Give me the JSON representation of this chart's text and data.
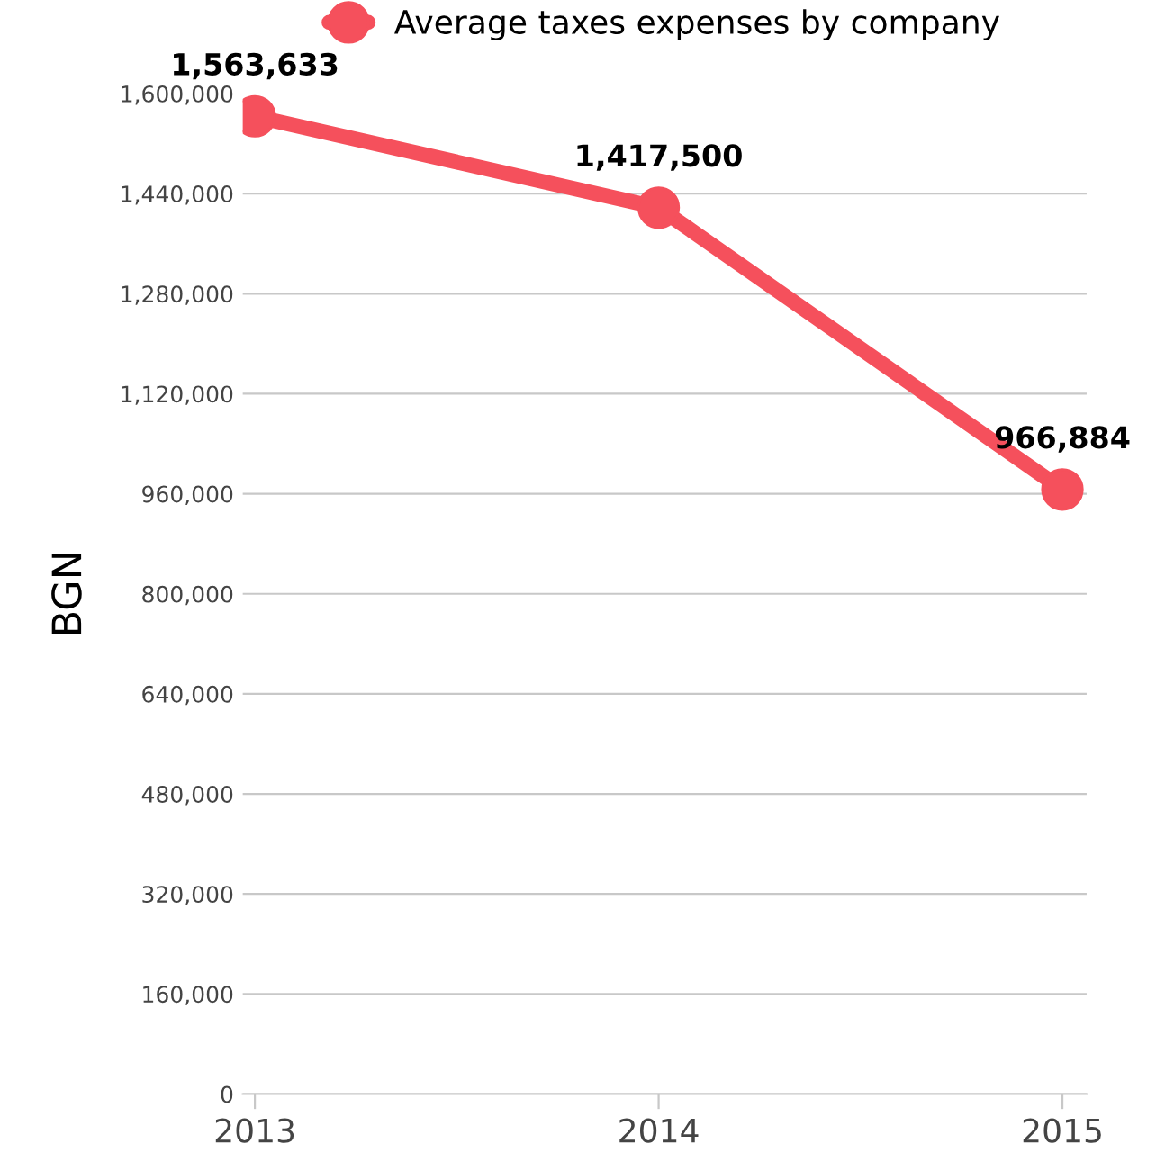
{
  "chart_data": {
    "type": "line",
    "ylabel": "BGN",
    "categories": [
      "2013",
      "2014",
      "2015"
    ],
    "series": [
      {
        "name": "Average taxes expenses by company",
        "color": "#f5505c",
        "values": [
          1563633,
          1417500,
          966884
        ]
      }
    ],
    "ylim": [
      0,
      1600000
    ],
    "yticks": [
      {
        "value": 0,
        "label": "0"
      },
      {
        "value": 160000,
        "label": "160,000"
      },
      {
        "value": 320000,
        "label": "320,000"
      },
      {
        "value": 480000,
        "label": "480,000"
      },
      {
        "value": 640000,
        "label": "640,000"
      },
      {
        "value": 800000,
        "label": "800,000"
      },
      {
        "value": 960000,
        "label": "960,000"
      },
      {
        "value": 1120000,
        "label": "1,120,000"
      },
      {
        "value": 1280000,
        "label": "1,280,000"
      },
      {
        "value": 1440000,
        "label": "1,440,000"
      },
      {
        "value": 1600000,
        "label": "1,600,000"
      }
    ],
    "grid": "y",
    "legend": "top",
    "marker": "circle",
    "line_style": "solid",
    "value_labels": [
      "1,563,633",
      "1,417,500",
      "966,884"
    ]
  }
}
